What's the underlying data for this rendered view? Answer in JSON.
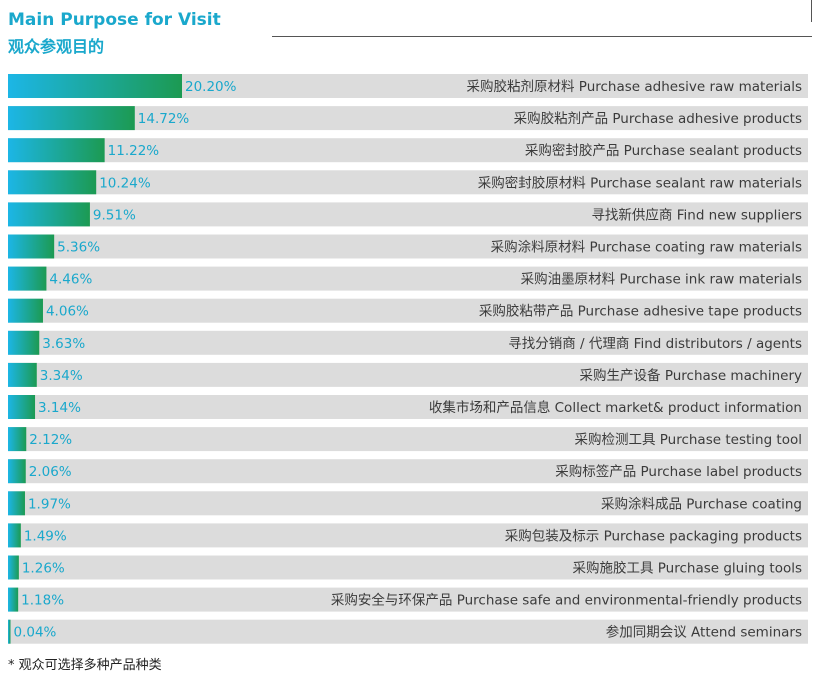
{
  "header": {
    "title_en": "Main Purpose for Visit",
    "title_zh": "观众参观目的"
  },
  "footnote": "* 观众可选择多种产品种类",
  "colors": {
    "title": "#1aa8cc",
    "bar_start": "#1cb6e6",
    "bar_end": "#1c9a52",
    "track": "#dcdcdc",
    "value_text": "#1aa8cc",
    "label_text": "#3b3b3b"
  },
  "chart_data": {
    "type": "bar",
    "orientation": "horizontal",
    "unit": "%",
    "xlim": [
      0,
      100
    ],
    "grid": false,
    "categories": [
      "采购胶粘剂原材料 Purchase adhesive raw materials",
      "采购胶粘剂产品 Purchase adhesive products",
      "采购密封胶产品 Purchase sealant products",
      "采购密封胶原材料 Purchase sealant raw materials",
      "寻找新供应商 Find new suppliers",
      "采购涂料原材料 Purchase coating raw materials",
      "采购油墨原材料 Purchase ink raw materials",
      "采购胶粘带产品 Purchase adhesive tape products",
      "寻找分销商 / 代理商 Find distributors / agents",
      "采购生产设备 Purchase machinery",
      "收集市场和产品信息 Collect market& product information",
      "采购检测工具 Purchase testing tool",
      "采购标签产品 Purchase label products",
      "采购涂料成品 Purchase coating",
      "采购包装及标示 Purchase packaging products",
      "采购施胶工具 Purchase gluing tools",
      "采购安全与环保产品 Purchase safe and environmental-friendly products",
      "参加同期会议 Attend seminars"
    ],
    "values": [
      20.2,
      14.72,
      11.22,
      10.24,
      9.51,
      5.36,
      4.46,
      4.06,
      3.63,
      3.34,
      3.14,
      2.12,
      2.06,
      1.97,
      1.49,
      1.26,
      1.18,
      0.04
    ],
    "value_labels": [
      "20.20%",
      "14.72%",
      "11.22%",
      "10.24%",
      "9.51%",
      "5.36%",
      "4.46%",
      "4.06%",
      "3.63%",
      "3.34%",
      "3.14%",
      "2.12%",
      "2.06%",
      "1.97%",
      "1.49%",
      "1.26%",
      "1.18%",
      "0.04%"
    ]
  }
}
